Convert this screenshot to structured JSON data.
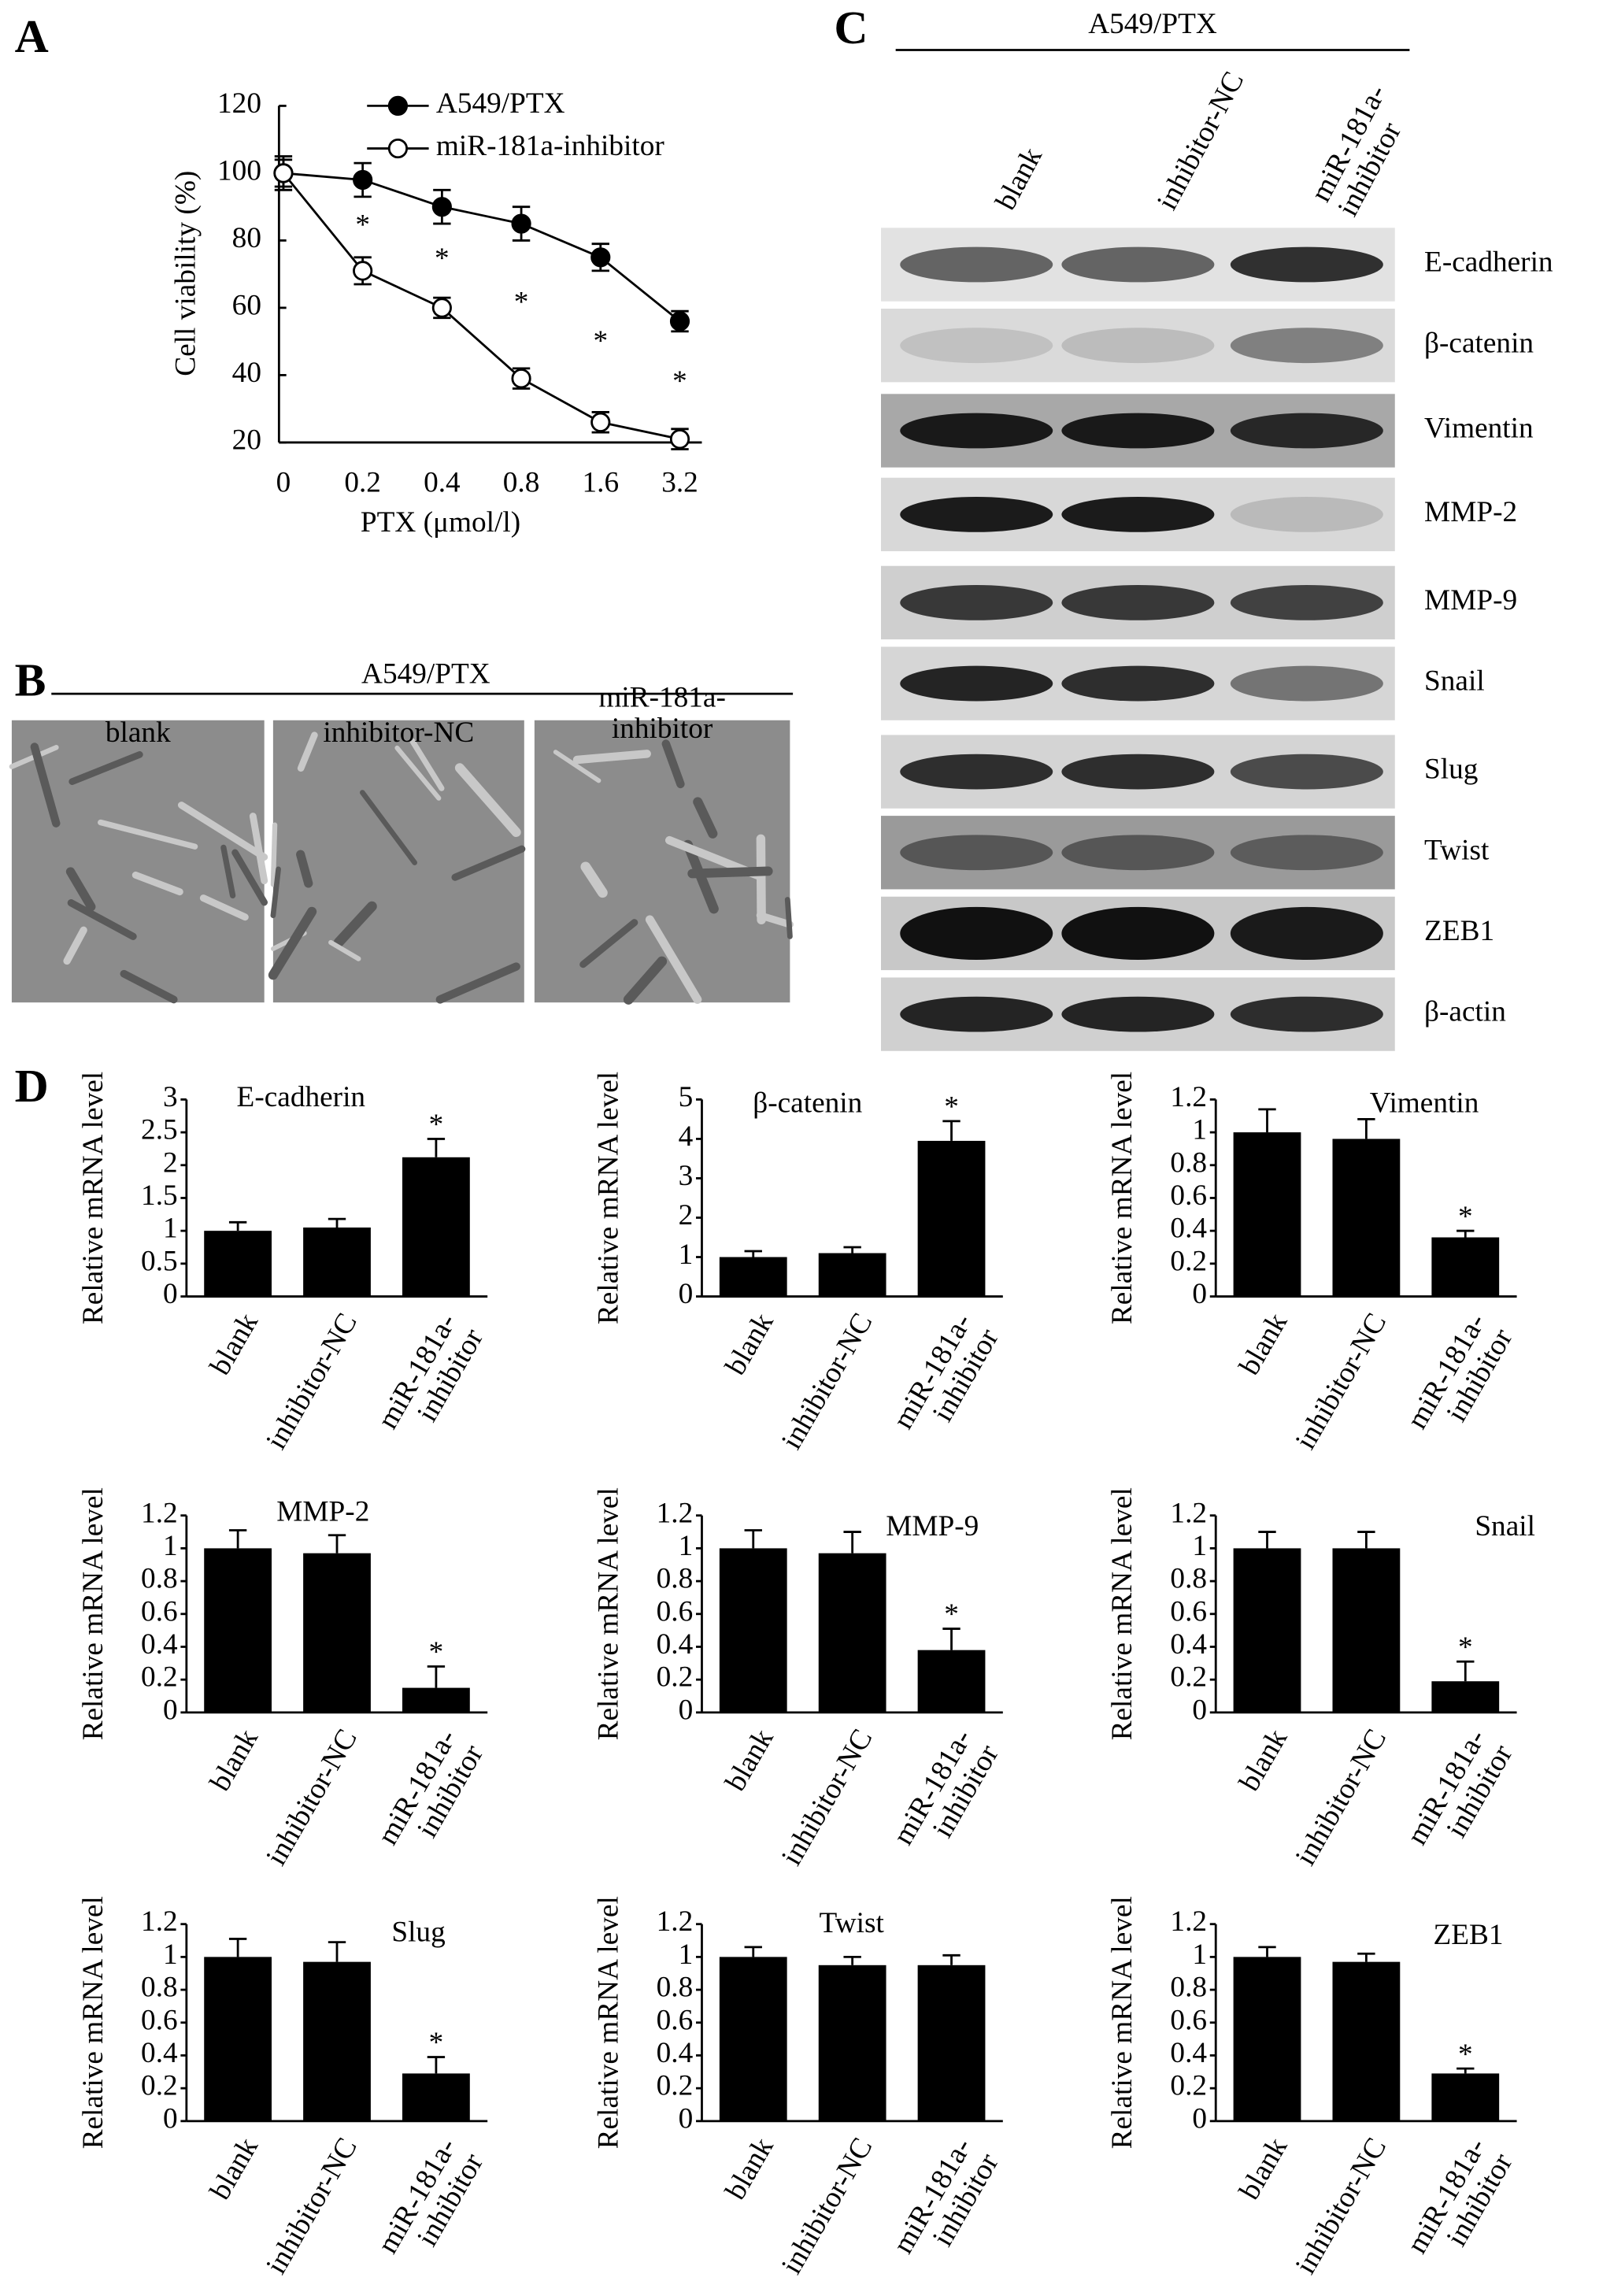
{
  "panels": {
    "a": "A",
    "b": "B",
    "c": "C",
    "d": "D"
  },
  "micrographs": {
    "header": "A549/PTX",
    "labels": [
      "blank",
      "inhibitor-NC",
      "miR-181a-inhibitor"
    ]
  },
  "blot": {
    "header": "A549/PTX",
    "lanes": [
      "blank",
      "inhibitor-NC",
      "miR-181a-inhibitor"
    ],
    "proteins": [
      "E-cadherin",
      "β-catenin",
      "Vimentin",
      "MMP-2",
      "MMP-9",
      "Snail",
      "Slug",
      "Twist",
      "ZEB1",
      "β-actin"
    ]
  },
  "chart_data": [
    {
      "type": "line",
      "ylabel": "Cell viability (%)",
      "xlabel": "PTX (μmol/l)",
      "categories": [
        "0",
        "0.2",
        "0.4",
        "0.8",
        "1.6",
        "3.2"
      ],
      "ylim": [
        20,
        120
      ],
      "yticks": [
        20,
        40,
        60,
        80,
        100,
        120
      ],
      "series": [
        {
          "name": "A549/PTX",
          "color": "#000000",
          "marker": "filled",
          "values": [
            100,
            98,
            90,
            85,
            75,
            56
          ],
          "errors": [
            5,
            5,
            5,
            5,
            4,
            3
          ]
        },
        {
          "name": "miR-181a-inhibitor",
          "color": "#000000",
          "marker": "open",
          "values": [
            100,
            71,
            60,
            39,
            26,
            21
          ],
          "errors": [
            4,
            4,
            3,
            3,
            3,
            3
          ]
        }
      ],
      "annotations": [
        null,
        "*",
        "*",
        "*",
        "*",
        "*"
      ],
      "legend": "top"
    },
    {
      "type": "bar",
      "title": "E-cadherin",
      "ylabel": "Relative mRNA level",
      "categories": [
        "blank",
        "inhibitor-NC",
        "miR-181a-inhibitor"
      ],
      "values": [
        1.0,
        1.05,
        2.12
      ],
      "errors": [
        0.13,
        0.13,
        0.28
      ],
      "annotations": [
        null,
        null,
        "*"
      ],
      "color": "#000000",
      "ylim": [
        0,
        3
      ],
      "yticks": [
        0,
        0.5,
        1,
        1.5,
        2,
        2.5,
        3
      ]
    },
    {
      "type": "bar",
      "title": "β-catenin",
      "ylabel": "Relative mRNA level",
      "categories": [
        "blank",
        "inhibitor-NC",
        "miR-181a-inhibitor"
      ],
      "values": [
        1.0,
        1.1,
        3.95
      ],
      "errors": [
        0.15,
        0.15,
        0.5
      ],
      "annotations": [
        null,
        null,
        "*"
      ],
      "color": "#000000",
      "ylim": [
        0,
        5
      ],
      "yticks": [
        0,
        1,
        2,
        3,
        4,
        5
      ]
    },
    {
      "type": "bar",
      "title": "Vimentin",
      "ylabel": "Relative mRNA level",
      "categories": [
        "blank",
        "inhibitor-NC",
        "miR-181a-inhibitor"
      ],
      "values": [
        1.0,
        0.96,
        0.36
      ],
      "errors": [
        0.14,
        0.12,
        0.04
      ],
      "annotations": [
        null,
        null,
        "*"
      ],
      "color": "#000000",
      "ylim": [
        0,
        1.2
      ],
      "yticks": [
        0,
        0.2,
        0.4,
        0.6,
        0.8,
        1,
        1.2
      ]
    },
    {
      "type": "bar",
      "title": "MMP-2",
      "ylabel": "Relative mRNA level",
      "categories": [
        "blank",
        "inhibitor-NC",
        "miR-181a-inhibitor"
      ],
      "values": [
        1.0,
        0.97,
        0.15
      ],
      "errors": [
        0.11,
        0.11,
        0.13
      ],
      "annotations": [
        null,
        null,
        "*"
      ],
      "color": "#000000",
      "ylim": [
        0,
        1.2
      ],
      "yticks": [
        0,
        0.2,
        0.4,
        0.6,
        0.8,
        1,
        1.2
      ]
    },
    {
      "type": "bar",
      "title": "MMP-9",
      "ylabel": "Relative mRNA level",
      "categories": [
        "blank",
        "inhibitor-NC",
        "miR-181a-inhibitor"
      ],
      "values": [
        1.0,
        0.97,
        0.38
      ],
      "errors": [
        0.11,
        0.13,
        0.13
      ],
      "annotations": [
        null,
        null,
        "*"
      ],
      "color": "#000000",
      "ylim": [
        0,
        1.2
      ],
      "yticks": [
        0,
        0.2,
        0.4,
        0.6,
        0.8,
        1,
        1.2
      ]
    },
    {
      "type": "bar",
      "title": "Snail",
      "ylabel": "Relative mRNA level",
      "categories": [
        "blank",
        "inhibitor-NC",
        "miR-181a-inhibitor"
      ],
      "values": [
        1.0,
        1.0,
        0.19
      ],
      "errors": [
        0.1,
        0.1,
        0.12
      ],
      "annotations": [
        null,
        null,
        "*"
      ],
      "color": "#000000",
      "ylim": [
        0,
        1.2
      ],
      "yticks": [
        0,
        0.2,
        0.4,
        0.6,
        0.8,
        1,
        1.2
      ]
    },
    {
      "type": "bar",
      "title": "Slug",
      "ylabel": "Relative mRNA level",
      "categories": [
        "blank",
        "inhibitor-NC",
        "miR-181a-inhibitor"
      ],
      "values": [
        1.0,
        0.97,
        0.29
      ],
      "errors": [
        0.11,
        0.12,
        0.1
      ],
      "annotations": [
        null,
        null,
        "*"
      ],
      "color": "#000000",
      "ylim": [
        0,
        1.2
      ],
      "yticks": [
        0,
        0.2,
        0.4,
        0.6,
        0.8,
        1,
        1.2
      ]
    },
    {
      "type": "bar",
      "title": "Twist",
      "ylabel": "Relative mRNA level",
      "categories": [
        "blank",
        "inhibitor-NC",
        "miR-181a-inhibitor"
      ],
      "values": [
        1.0,
        0.95,
        0.95
      ],
      "errors": [
        0.06,
        0.05,
        0.06
      ],
      "color": "#000000",
      "ylim": [
        0,
        1.2
      ],
      "yticks": [
        0,
        0.2,
        0.4,
        0.6,
        0.8,
        1,
        1.2
      ]
    },
    {
      "type": "bar",
      "title": "ZEB1",
      "ylabel": "Relative mRNA level",
      "categories": [
        "blank",
        "inhibitor-NC",
        "miR-181a-inhibitor"
      ],
      "values": [
        1.0,
        0.97,
        0.29
      ],
      "errors": [
        0.06,
        0.05,
        0.03
      ],
      "annotations": [
        null,
        null,
        "*"
      ],
      "color": "#000000",
      "ylim": [
        0,
        1.2
      ],
      "yticks": [
        0,
        0.2,
        0.4,
        0.6,
        0.8,
        1,
        1.2
      ]
    }
  ]
}
